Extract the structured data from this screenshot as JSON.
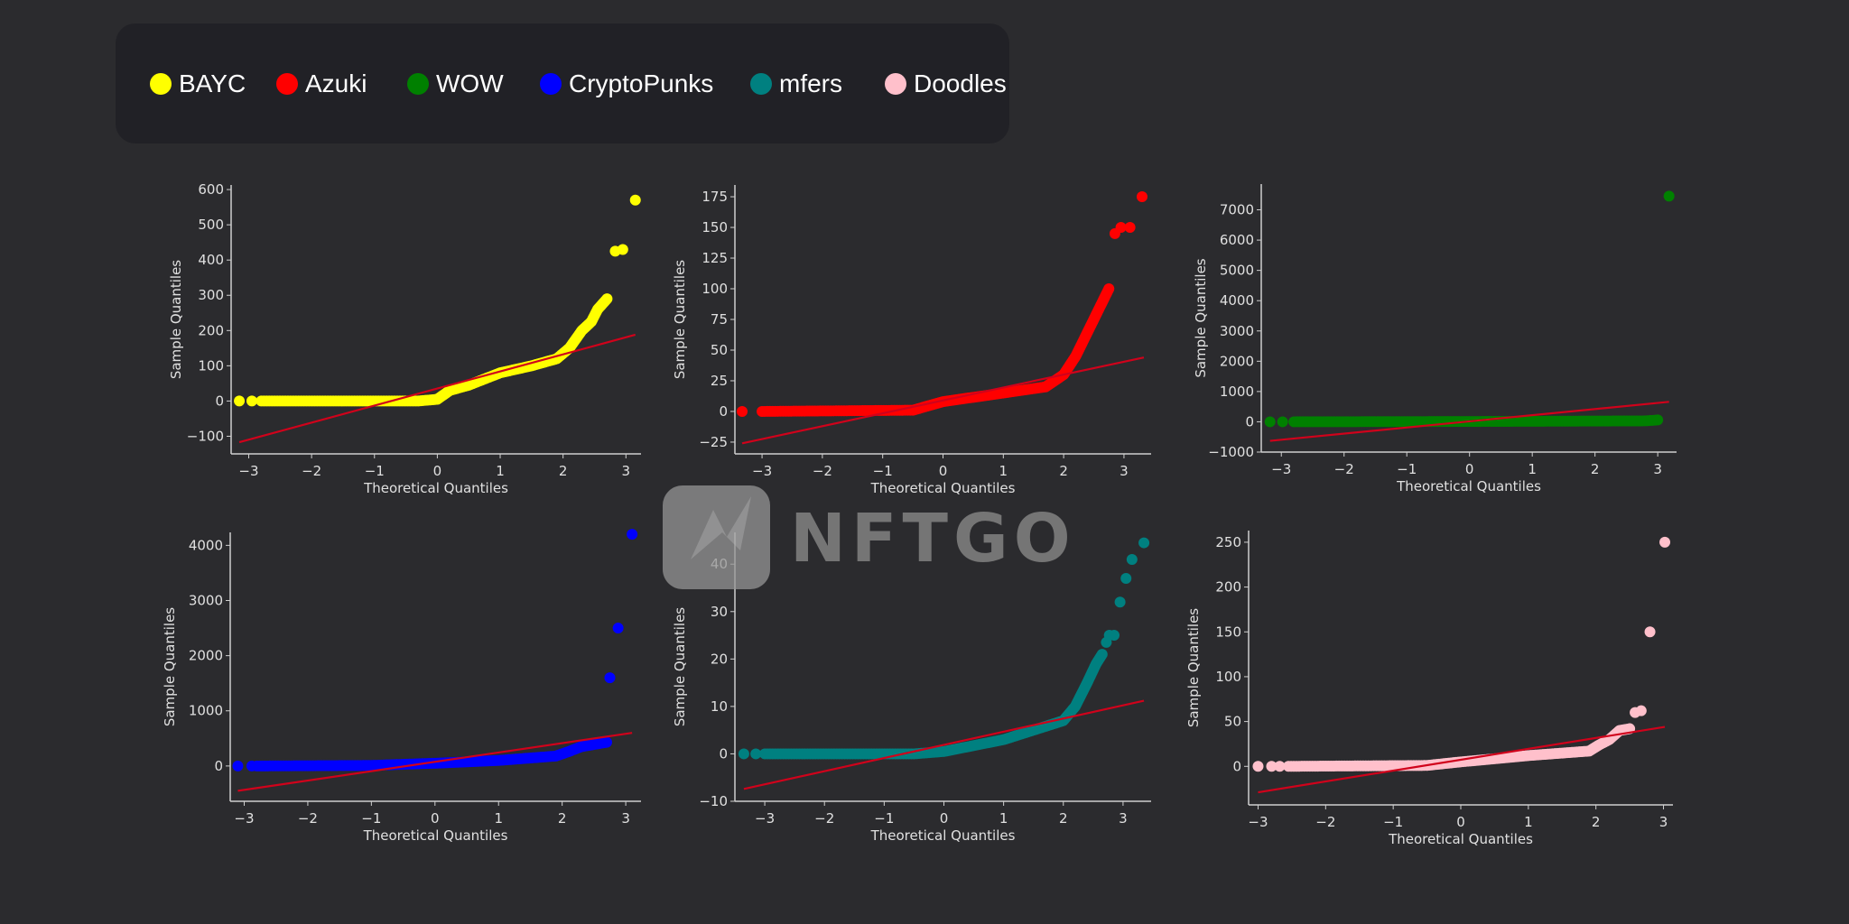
{
  "legend": [
    {
      "label": "BAYC",
      "color": "#ffff00"
    },
    {
      "label": "Azuki",
      "color": "#ff0000"
    },
    {
      "label": "WOW",
      "color": "#008000"
    },
    {
      "label": "CryptoPunks",
      "color": "#0000ff"
    },
    {
      "label": "mfers",
      "color": "#008080"
    },
    {
      "label": "Doodles",
      "color": "#ffc0cb"
    }
  ],
  "watermark": "NFTGO",
  "chart_data": [
    {
      "type": "scatter",
      "name": "BAYC",
      "color": "#ffff00",
      "xlabel": "Theoretical Quantiles",
      "ylabel": "Sample Quantiles",
      "xlim": [
        -3.28,
        3.24
      ],
      "ylim": [
        -150,
        613
      ],
      "xticks": [
        -3,
        -2,
        -1,
        0,
        1,
        2,
        3
      ],
      "yticks": [
        -100,
        0,
        100,
        200,
        300,
        400,
        500,
        600
      ],
      "curve": [
        [
          -2.8,
          0
        ],
        [
          -0.3,
          0
        ],
        [
          0,
          5
        ],
        [
          0.2,
          30
        ],
        [
          0.5,
          45
        ],
        [
          1,
          80
        ],
        [
          1.5,
          100
        ],
        [
          1.9,
          120
        ],
        [
          2.1,
          150
        ],
        [
          2.3,
          200
        ],
        [
          2.45,
          225
        ],
        [
          2.55,
          260
        ],
        [
          2.7,
          290
        ]
      ],
      "points": [
        [
          -3.15,
          0
        ],
        [
          -2.95,
          0
        ],
        [
          2.83,
          425
        ],
        [
          2.95,
          430
        ],
        [
          3.15,
          570
        ]
      ],
      "ref_line": [
        [
          -3.15,
          -117
        ],
        [
          3.15,
          188
        ]
      ]
    },
    {
      "type": "scatter",
      "name": "Azuki",
      "color": "#ff0000",
      "xlabel": "Theoretical Quantiles",
      "ylabel": "Sample Quantiles",
      "xlim": [
        -3.45,
        3.45
      ],
      "ylim": [
        -34.6,
        184.6
      ],
      "xticks": [
        -3,
        -2,
        -1,
        0,
        1,
        2,
        3
      ],
      "yticks": [
        -25,
        0,
        25,
        50,
        75,
        100,
        125,
        150,
        175
      ],
      "curve": [
        [
          -3.0,
          0
        ],
        [
          -0.5,
          1
        ],
        [
          0,
          8
        ],
        [
          1,
          15
        ],
        [
          1.7,
          20
        ],
        [
          2,
          30
        ],
        [
          2.2,
          45
        ],
        [
          2.4,
          65
        ],
        [
          2.6,
          85
        ],
        [
          2.75,
          100
        ]
      ],
      "points": [
        [
          -3.33,
          0
        ],
        [
          2.85,
          145
        ],
        [
          2.95,
          150
        ],
        [
          3.1,
          150
        ],
        [
          3.3,
          175
        ]
      ],
      "ref_line": [
        [
          -3.33,
          -26
        ],
        [
          3.33,
          44
        ]
      ]
    },
    {
      "type": "scatter",
      "name": "WOW",
      "color": "#008000",
      "xlabel": "Theoretical Quantiles",
      "ylabel": "Sample Quantiles",
      "xlim": [
        -3.32,
        3.3
      ],
      "ylim": [
        -1000,
        7850
      ],
      "xticks": [
        -3,
        -2,
        -1,
        0,
        1,
        2,
        3
      ],
      "yticks": [
        -1000,
        0,
        1000,
        2000,
        3000,
        4000,
        5000,
        6000,
        7000
      ],
      "curve": [
        [
          -2.8,
          0
        ],
        [
          0,
          10
        ],
        [
          2.8,
          30
        ],
        [
          3.0,
          60
        ]
      ],
      "points": [
        [
          -3.18,
          0
        ],
        [
          -2.98,
          0
        ],
        [
          3.18,
          7450
        ]
      ],
      "ref_line": [
        [
          -3.18,
          -630
        ],
        [
          3.18,
          660
        ]
      ]
    },
    {
      "type": "scatter",
      "name": "CryptoPunks",
      "color": "#0000ff",
      "xlabel": "Theoretical Quantiles",
      "ylabel": "Sample Quantiles",
      "xlim": [
        -3.22,
        3.24
      ],
      "ylim": [
        -640,
        4235
      ],
      "xticks": [
        -3,
        -2,
        -1,
        0,
        1,
        2,
        3
      ],
      "yticks": [
        0,
        1000,
        2000,
        3000,
        4000
      ],
      "curve": [
        [
          -2.8,
          0
        ],
        [
          -1,
          10
        ],
        [
          0,
          50
        ],
        [
          1,
          100
        ],
        [
          1.9,
          180
        ],
        [
          2.1,
          260
        ],
        [
          2.3,
          350
        ],
        [
          2.7,
          430
        ]
      ],
      "points": [
        [
          -3.1,
          0
        ],
        [
          -2.88,
          0
        ],
        [
          2.75,
          1600
        ],
        [
          2.88,
          2500
        ],
        [
          3.1,
          4200
        ]
      ],
      "ref_line": [
        [
          -3.1,
          -450
        ],
        [
          3.1,
          600
        ]
      ]
    },
    {
      "type": "scatter",
      "name": "mfers",
      "color": "#008080",
      "xlabel": "Theoretical Quantiles",
      "ylabel": "Sample Quantiles",
      "xlim": [
        -3.5,
        3.47
      ],
      "ylim": [
        -10,
        46.7
      ],
      "xticks": [
        -3,
        -2,
        -1,
        0,
        1,
        2,
        3
      ],
      "yticks": [
        -10,
        0,
        10,
        20,
        30,
        40
      ],
      "curve": [
        [
          -3.0,
          0
        ],
        [
          -0.5,
          0
        ],
        [
          0,
          0.5
        ],
        [
          1,
          3
        ],
        [
          2,
          7
        ],
        [
          2.2,
          10
        ],
        [
          2.4,
          15
        ],
        [
          2.55,
          19
        ],
        [
          2.65,
          21
        ]
      ],
      "points": [
        [
          -3.35,
          0
        ],
        [
          -3.15,
          0
        ],
        [
          2.72,
          23.5
        ],
        [
          2.77,
          25
        ],
        [
          2.85,
          25
        ],
        [
          2.95,
          32
        ],
        [
          3.05,
          37
        ],
        [
          3.15,
          41
        ],
        [
          3.35,
          44.5
        ]
      ],
      "ref_line": [
        [
          -3.35,
          -7.4
        ],
        [
          3.35,
          11.2
        ]
      ]
    },
    {
      "type": "scatter",
      "name": "Doodles",
      "color": "#ffc0cb",
      "xlabel": "Theoretical Quantiles",
      "ylabel": "Sample Quantiles",
      "xlim": [
        -3.14,
        3.14
      ],
      "ylim": [
        -43,
        263
      ],
      "xticks": [
        -3,
        -2,
        -1,
        0,
        1,
        2,
        3
      ],
      "yticks": [
        0,
        50,
        100,
        150,
        200,
        250
      ],
      "curve": [
        [
          -2.55,
          0
        ],
        [
          -0.5,
          1
        ],
        [
          0,
          5
        ],
        [
          1,
          12
        ],
        [
          1.9,
          17
        ],
        [
          2.05,
          24
        ],
        [
          2.2,
          30
        ],
        [
          2.35,
          40
        ],
        [
          2.5,
          42
        ]
      ],
      "points": [
        [
          -3.0,
          0
        ],
        [
          -2.8,
          0
        ],
        [
          -2.68,
          0
        ],
        [
          2.58,
          60
        ],
        [
          2.67,
          62
        ],
        [
          2.8,
          150
        ],
        [
          3.02,
          250
        ]
      ],
      "ref_line": [
        [
          -3.0,
          -29
        ],
        [
          3.02,
          44
        ]
      ]
    }
  ]
}
